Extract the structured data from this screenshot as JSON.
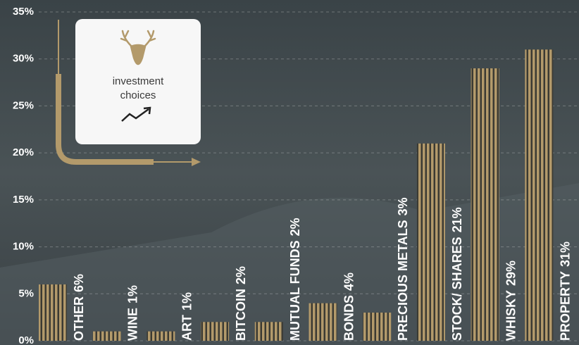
{
  "chart_data": {
    "type": "bar",
    "categories": [
      "OTHER",
      "WINE",
      "ART",
      "BITCOIN",
      "MUTUAL FUNDS",
      "BONDS",
      "PRECIOUS METALS",
      "STOCK/ SHARES",
      "WHISKY",
      "PROPERTY"
    ],
    "values": [
      6,
      1,
      1,
      2,
      2,
      4,
      3,
      21,
      29,
      31
    ],
    "value_labels": [
      "6%",
      "1%",
      "1%",
      "2%",
      "2%",
      "4%",
      "3%",
      "21%",
      "29%",
      "31%"
    ],
    "color": "#b39a6b",
    "ylim": [
      0,
      35
    ],
    "yticks": [
      {
        "value": 0,
        "label": "0%"
      },
      {
        "value": 5,
        "label": "5%"
      },
      {
        "value": 10,
        "label": "10%"
      },
      {
        "value": 15,
        "label": "15%"
      },
      {
        "value": 20,
        "label": "20%"
      },
      {
        "value": 25,
        "label": "25%"
      },
      {
        "value": 30,
        "label": "30%"
      },
      {
        "value": 35,
        "label": "35%"
      }
    ],
    "grid": true
  },
  "card": {
    "lines": [
      "investment",
      "choices"
    ]
  }
}
